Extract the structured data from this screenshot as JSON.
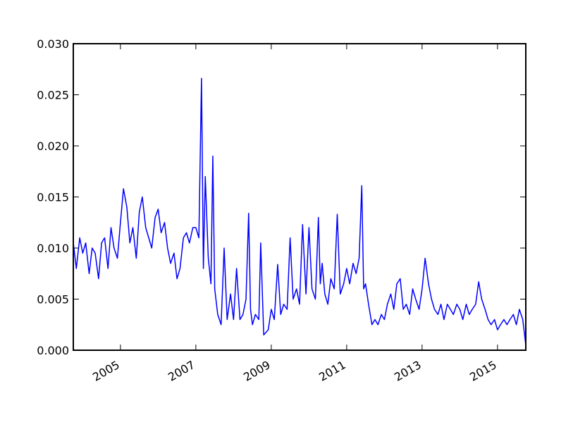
{
  "chart_data": {
    "type": "line",
    "x": [
      2003.75,
      2003.83,
      2003.92,
      2004.0,
      2004.08,
      2004.17,
      2004.25,
      2004.33,
      2004.42,
      2004.5,
      2004.58,
      2004.67,
      2004.75,
      2004.83,
      2004.92,
      2005.0,
      2005.08,
      2005.17,
      2005.25,
      2005.33,
      2005.42,
      2005.5,
      2005.58,
      2005.67,
      2005.75,
      2005.83,
      2005.92,
      2006.0,
      2006.08,
      2006.17,
      2006.25,
      2006.33,
      2006.42,
      2006.5,
      2006.58,
      2006.67,
      2006.75,
      2006.83,
      2006.92,
      2007.0,
      2007.08,
      2007.15,
      2007.2,
      2007.25,
      2007.33,
      2007.4,
      2007.45,
      2007.5,
      2007.58,
      2007.67,
      2007.75,
      2007.83,
      2007.92,
      2008.0,
      2008.08,
      2008.17,
      2008.25,
      2008.33,
      2008.4,
      2008.45,
      2008.5,
      2008.58,
      2008.67,
      2008.72,
      2008.8,
      2008.92,
      2009.0,
      2009.08,
      2009.17,
      2009.25,
      2009.33,
      2009.42,
      2009.5,
      2009.58,
      2009.67,
      2009.75,
      2009.83,
      2009.92,
      2010.0,
      2010.08,
      2010.17,
      2010.25,
      2010.3,
      2010.35,
      2010.42,
      2010.5,
      2010.58,
      2010.67,
      2010.75,
      2010.83,
      2010.92,
      2011.0,
      2011.08,
      2011.17,
      2011.25,
      2011.33,
      2011.4,
      2011.45,
      2011.5,
      2011.58,
      2011.67,
      2011.75,
      2011.83,
      2011.92,
      2012.0,
      2012.08,
      2012.17,
      2012.25,
      2012.33,
      2012.42,
      2012.5,
      2012.58,
      2012.67,
      2012.75,
      2012.83,
      2012.92,
      2013.0,
      2013.08,
      2013.17,
      2013.25,
      2013.33,
      2013.42,
      2013.5,
      2013.58,
      2013.67,
      2013.75,
      2013.83,
      2013.92,
      2014.0,
      2014.08,
      2014.17,
      2014.25,
      2014.33,
      2014.42,
      2014.5,
      2014.58,
      2014.67,
      2014.75,
      2014.83,
      2014.92,
      2015.0,
      2015.08,
      2015.17,
      2015.25,
      2015.33,
      2015.42,
      2015.5,
      2015.58,
      2015.67,
      2015.75
    ],
    "series": [
      {
        "color": "#0000ff",
        "values": [
          0.0105,
          0.008,
          0.011,
          0.0095,
          0.0105,
          0.0075,
          0.01,
          0.0095,
          0.007,
          0.0105,
          0.011,
          0.008,
          0.012,
          0.01,
          0.009,
          0.0125,
          0.0158,
          0.014,
          0.0105,
          0.012,
          0.009,
          0.0135,
          0.015,
          0.012,
          0.011,
          0.01,
          0.013,
          0.0138,
          0.0115,
          0.0125,
          0.01,
          0.0085,
          0.0095,
          0.007,
          0.008,
          0.011,
          0.0115,
          0.0105,
          0.012,
          0.012,
          0.011,
          0.0266,
          0.008,
          0.017,
          0.009,
          0.0065,
          0.019,
          0.006,
          0.0035,
          0.0025,
          0.01,
          0.003,
          0.0055,
          0.003,
          0.008,
          0.003,
          0.0035,
          0.005,
          0.0134,
          0.004,
          0.0025,
          0.0035,
          0.003,
          0.0105,
          0.0015,
          0.002,
          0.004,
          0.003,
          0.0084,
          0.0035,
          0.0045,
          0.004,
          0.011,
          0.005,
          0.006,
          0.0045,
          0.0123,
          0.0055,
          0.012,
          0.006,
          0.005,
          0.013,
          0.0065,
          0.0085,
          0.0055,
          0.0045,
          0.007,
          0.006,
          0.0133,
          0.0055,
          0.0065,
          0.008,
          0.0065,
          0.0085,
          0.0075,
          0.009,
          0.0161,
          0.006,
          0.0065,
          0.0045,
          0.0025,
          0.003,
          0.0025,
          0.0035,
          0.003,
          0.0045,
          0.0055,
          0.004,
          0.0065,
          0.007,
          0.004,
          0.0045,
          0.0035,
          0.006,
          0.005,
          0.004,
          0.006,
          0.009,
          0.0065,
          0.005,
          0.004,
          0.0035,
          0.0045,
          0.003,
          0.0045,
          0.004,
          0.0035,
          0.0045,
          0.004,
          0.003,
          0.0045,
          0.0035,
          0.004,
          0.0045,
          0.0067,
          0.005,
          0.004,
          0.003,
          0.0025,
          0.003,
          0.002,
          0.0025,
          0.003,
          0.0025,
          0.003,
          0.0035,
          0.0025,
          0.004,
          0.003,
          0.0005
        ]
      }
    ],
    "xlim": [
      2003.75,
      2015.75
    ],
    "xticks": [
      2005,
      2007,
      2009,
      2011,
      2013,
      2015
    ],
    "ylim": [
      0,
      0.03
    ],
    "yticks": [
      {
        "value": 0,
        "label": "0.000"
      },
      {
        "value": 0.005,
        "label": "0.005"
      },
      {
        "value": 0.01,
        "label": "0.010"
      },
      {
        "value": 0.015,
        "label": "0.015"
      },
      {
        "value": 0.02,
        "label": "0.020"
      },
      {
        "value": 0.025,
        "label": "0.025"
      },
      {
        "value": 0.03,
        "label": "0.030"
      }
    ]
  }
}
